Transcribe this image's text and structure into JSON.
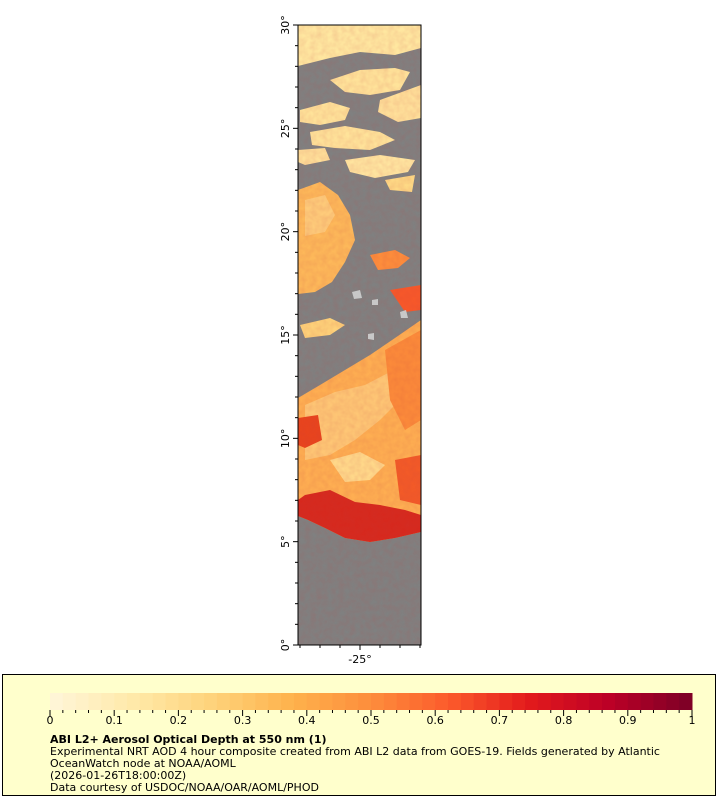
{
  "map": {
    "lat_range": [
      0,
      30
    ],
    "lon_center": -25,
    "lat_ticks": [
      "0°",
      "5°",
      "10°",
      "15°",
      "20°",
      "25°",
      "30°"
    ],
    "lon_ticks": [
      "-25°"
    ],
    "land_color": "#808080",
    "nodata_color": "#c8c8c8"
  },
  "legend": {
    "min": 0,
    "max": 1,
    "ticks": [
      "0",
      "0.1",
      "0.2",
      "0.3",
      "0.4",
      "0.5",
      "0.6",
      "0.7",
      "0.8",
      "0.9",
      "1"
    ],
    "colors": [
      "#fff5d6",
      "#ffe9a8",
      "#fed27a",
      "#feb24c",
      "#fd8d3c",
      "#fc5a2b",
      "#e31a1c",
      "#bd0026",
      "#800026"
    ],
    "title": "ABI L2+ Aerosol Optical Depth at 550 nm (1)",
    "description": "Experimental NRT AOD 4 hour composite created from ABI L2 data from GOES-19. Fields generated by Atlantic OceanWatch node at NOAA/AOML",
    "date": "(2026-01-26T18:00:00Z)",
    "credit": "Data courtesy of USDOC/NOAA/OAR/AOML/PHOD"
  }
}
